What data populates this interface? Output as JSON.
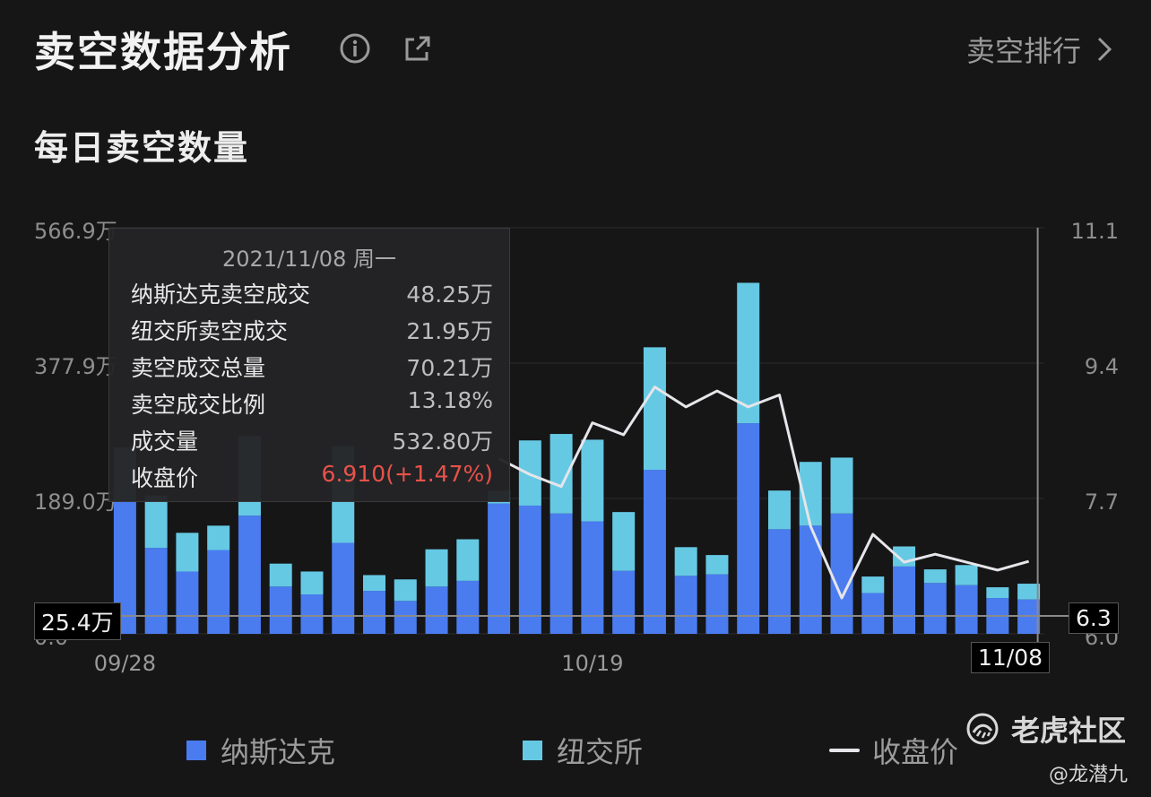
{
  "header": {
    "title": "卖空数据分析",
    "rank_label": "卖空排行"
  },
  "section": {
    "title": "每日卖空数量"
  },
  "colors": {
    "nasdaq": "#4a7cf0",
    "nyse": "#66c9e4",
    "close": "#e5e5ea",
    "up": "#e8524a"
  },
  "icons": {
    "info": "info-icon",
    "share": "share-icon",
    "chevron": "chevron-right-icon"
  },
  "chart_data": {
    "type": "bar",
    "stacked": true,
    "left_axis": {
      "ticks": [
        "566.9万",
        "377.9万",
        "189.0万",
        "0.0"
      ],
      "range": [
        0,
        566.9
      ]
    },
    "right_axis": {
      "ticks": [
        "11.1",
        "9.4",
        "7.7",
        "6.0"
      ],
      "range": [
        6.0,
        11.1
      ]
    },
    "x_tick_labels": [
      "09/28",
      "10/19",
      "11/08"
    ],
    "series": [
      {
        "name": "纳斯达克",
        "values": [
          186,
          120,
          87,
          117,
          165,
          66,
          55,
          127,
          60,
          46,
          66,
          74,
          182,
          179,
          168,
          157,
          88,
          229,
          81,
          83,
          294,
          146,
          151,
          168,
          57,
          94,
          71,
          68,
          50,
          48
        ]
      },
      {
        "name": "纽交所",
        "values": [
          74,
          73,
          54,
          34,
          111,
          32,
          32,
          135,
          22,
          30,
          52,
          58,
          18,
          91,
          111,
          114,
          82,
          171,
          40,
          27,
          196,
          54,
          89,
          78,
          23,
          28,
          19,
          28,
          15,
          22
        ]
      }
    ],
    "close_line": {
      "name": "收盘价",
      "values": [
        null,
        null,
        null,
        null,
        null,
        null,
        null,
        null,
        null,
        null,
        null,
        null,
        8.2,
        8.0,
        7.85,
        8.65,
        8.5,
        9.1,
        8.85,
        9.05,
        8.85,
        9.0,
        7.35,
        6.45,
        7.25,
        6.9,
        7.0,
        6.9,
        6.8,
        6.91
      ]
    },
    "crosshair": {
      "y_value_label": "25.4万",
      "price_label": "6.3",
      "date_label": "11/08"
    },
    "legend_position": "bottom",
    "grid": true
  },
  "tooltip": {
    "date": "2021/11/08 周一",
    "rows": [
      {
        "label": "纳斯达克卖空成交",
        "value": "48.25万"
      },
      {
        "label": "纽交所卖空成交",
        "value": "21.95万"
      },
      {
        "label": "卖空成交总量",
        "value": "70.21万"
      },
      {
        "label": "卖空成交比例",
        "value": "13.18%"
      },
      {
        "label": "成交量",
        "value": "532.80万"
      },
      {
        "label": "收盘价",
        "value": "6.910(+1.47%)"
      }
    ]
  },
  "legend": [
    {
      "label": "纳斯达克"
    },
    {
      "label": "纽交所"
    },
    {
      "label": "收盘价"
    }
  ],
  "brand": {
    "name": "老虎社区",
    "handle": "@龙潜九"
  }
}
